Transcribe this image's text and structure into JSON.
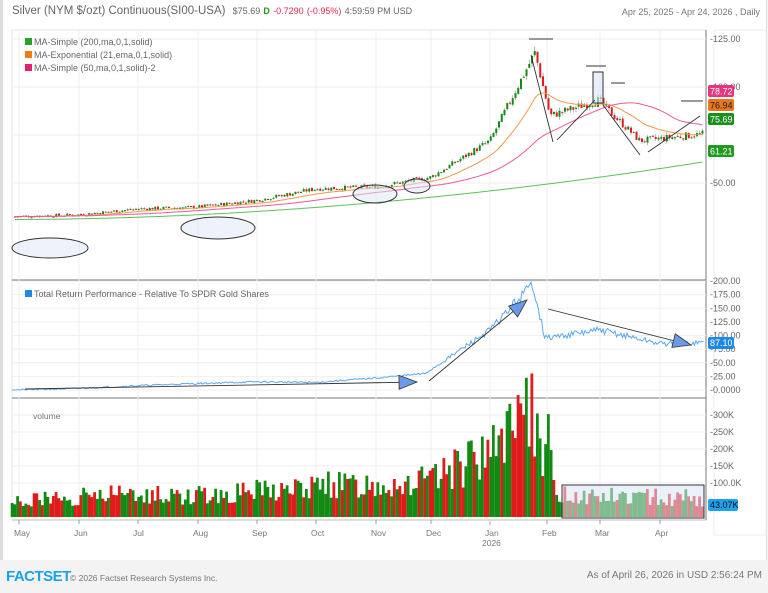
{
  "header": {
    "title": "Silver (NYM $/ozt) Continuous(SI00-USA)",
    "price": "$75.69",
    "flag": "D",
    "change": "-0.7290",
    "change_pct": "(-0.95%)",
    "time": "4:59:59 PM USD",
    "date_range": "Apr 25, 2025 - Apr 24, 2026 , Daily"
  },
  "footer": {
    "logo": "FACTSET",
    "copyright": "© 2026 Factset Research Systems Inc.",
    "as_of": "As of April 26, 2026 in USD 2:56:24 PM"
  },
  "colors": {
    "up": "#138a13",
    "down": "#e01b1b",
    "ma200": "#5cbf5c",
    "ema21": "#f0984a",
    "ma50": "#e85a9a",
    "perf": "#5aa9ee",
    "annot_fill": "#dbe6f8"
  },
  "chart_data": [
    {
      "type": "candlestick",
      "title": "Silver (NYM $/ozt) Continuous(SI00-USA) — Price",
      "x_months": [
        "May",
        "Jun",
        "Jul",
        "Aug",
        "Sep",
        "Oct",
        "Nov",
        "Dec",
        "Jan",
        "Feb",
        "Mar",
        "Apr"
      ],
      "year_marker": "2026",
      "y_ticks": [
        "125.00",
        "100.00",
        "50.00"
      ],
      "ylim": [
        25,
        130
      ],
      "legend": [
        {
          "label": "MA-Simple (200,ma,0,1,solid)",
          "color": "#2ca02c"
        },
        {
          "label": "MA-Exponential (21,ema,0,1,solid)",
          "color": "#ef7d12"
        },
        {
          "label": "MA-Simple (50,ma,0,1,solid)-2",
          "color": "#e91e74"
        }
      ],
      "last_value_tags": [
        {
          "value": "78.72",
          "series": "MA-Simple 50",
          "color": "#e8337e"
        },
        {
          "value": "76.94",
          "series": "EMA 21",
          "color": "#e8761c"
        },
        {
          "value": "75.69",
          "series": "Price",
          "color": "#17911a"
        },
        {
          "value": "61.21",
          "series": "MA-Simple 200",
          "color": "#1f9a1f"
        }
      ],
      "close_series": {
        "x": [
          "May",
          "Jun",
          "Jul",
          "Aug",
          "Sep",
          "Oct",
          "Nov",
          "Dec",
          "Jan",
          "Feb-peak",
          "Feb",
          "Mar",
          "Apr",
          "Apr-end"
        ],
        "values": [
          32.5,
          33.5,
          36.5,
          37.5,
          41,
          47,
          48,
          53,
          72,
          118,
          85,
          93,
          72,
          75.69
        ]
      },
      "ma200_endpoints": [
        31,
        61.21
      ],
      "annotations": [
        "ellipse May consolidation",
        "ellipse Aug consolidation",
        "ellipse Nov consolidation",
        "ellipse Dec consolidation",
        "peak horizontal at ~121 late Jan",
        "box around Mar spike",
        "trend lines Feb-Apr"
      ]
    },
    {
      "type": "line",
      "title": "Total Return Performance - Relative To SPDR Gold Shares",
      "y_ticks": [
        "200.00",
        "175.00",
        "150.00",
        "125.00",
        "100.00",
        "75.00",
        "50.00",
        "25.00",
        "0.0000"
      ],
      "ylim": [
        0,
        200
      ],
      "last_value": "87.10",
      "series": [
        {
          "name": "Total Return Performance - Relative To SPDR Gold Shares",
          "x": [
            "May",
            "Jun",
            "Jul",
            "Aug",
            "Sep",
            "Oct",
            "Nov",
            "Dec",
            "Jan",
            "Late Jan",
            "Feb",
            "Mar",
            "Apr",
            "Apr-end"
          ],
          "values": [
            0,
            3,
            8,
            12,
            15,
            14,
            22,
            30,
            110,
            195,
            95,
            110,
            85,
            87.1
          ]
        }
      ]
    },
    {
      "type": "bar",
      "title": "volume",
      "y_ticks": [
        "300K",
        "250K",
        "200K",
        "150K",
        "100.0K"
      ],
      "ylim": [
        0,
        340000
      ],
      "last_value": "43.07K",
      "series": [
        {
          "name": "volume",
          "x": [
            "May",
            "Jun",
            "Jul",
            "Aug",
            "Sep",
            "Oct",
            "Nov",
            "Dec",
            "Jan",
            "Late Jan",
            "Feb",
            "Mar",
            "Apr"
          ],
          "values": [
            45000,
            60000,
            70000,
            65000,
            80000,
            90000,
            105000,
            110000,
            180000,
            310000,
            70000,
            65000,
            55000
          ]
        }
      ]
    }
  ]
}
